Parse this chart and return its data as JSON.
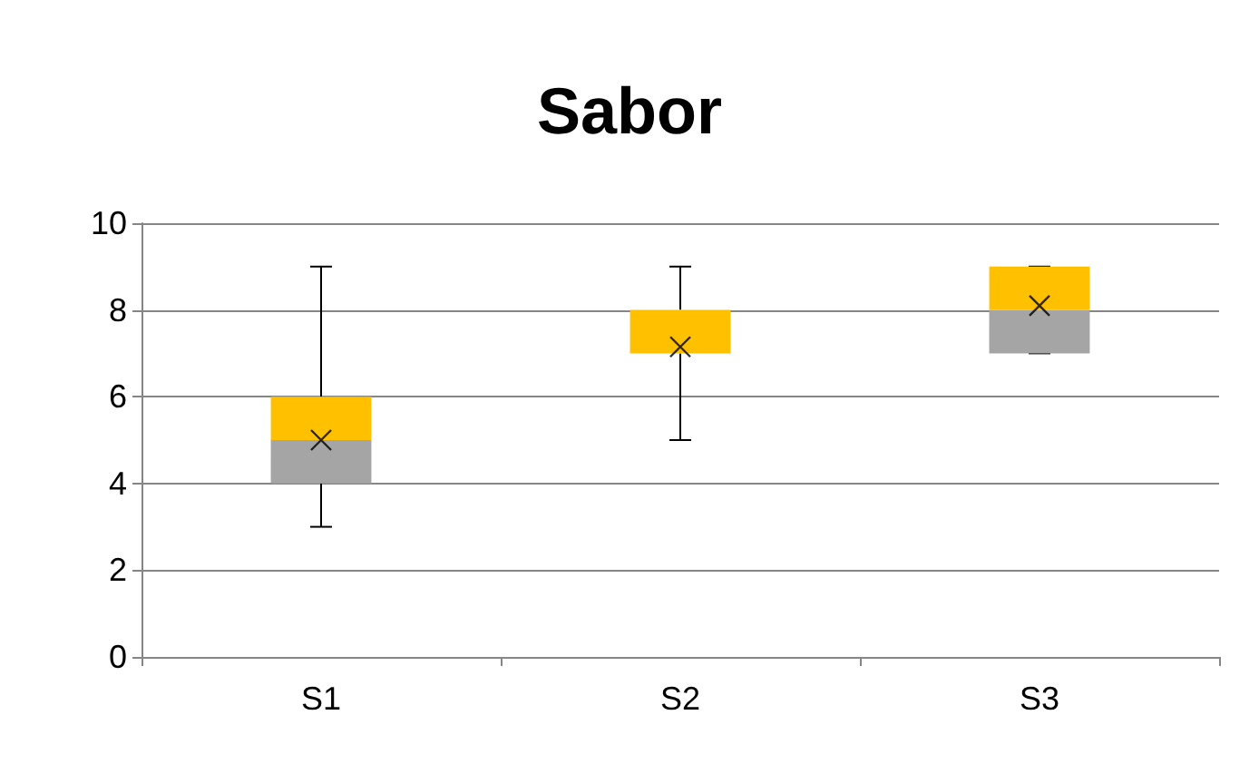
{
  "chart_data": {
    "type": "box",
    "title": "Sabor",
    "categories": [
      "S1",
      "S2",
      "S3"
    ],
    "boxes": [
      {
        "low": 3,
        "q1": 4,
        "median": 5,
        "q3": 6,
        "high": 9,
        "mean": 5
      },
      {
        "low": 5,
        "q1": 7,
        "median": 7,
        "q3": 8,
        "high": 9,
        "mean": 7.15
      },
      {
        "low": 7,
        "q1": 7,
        "median": 8,
        "q3": 9,
        "high": 9,
        "mean": 8.1
      }
    ],
    "colors": [
      "#a5a5a5",
      null,
      "#a5a5a5"
    ],
    "color": "#ffc000",
    "marker": "cross",
    "ylim": [
      0,
      10
    ],
    "yticks": [
      0,
      2,
      4,
      6,
      8,
      10
    ],
    "grid": "y"
  }
}
